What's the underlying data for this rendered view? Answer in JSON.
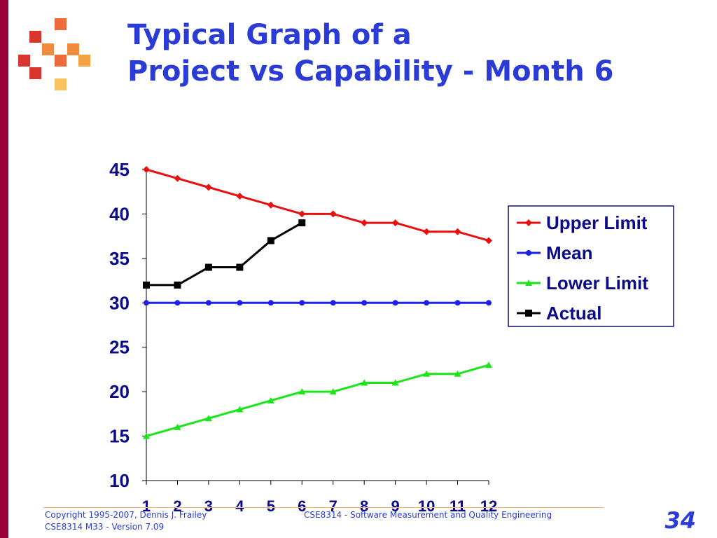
{
  "slide": {
    "title_line1": "Typical Graph of a",
    "title_line2": "Project vs Capability - Month 6",
    "footer_copyright": "Copyright 1995-2007, Dennis J. Frailey",
    "footer_version": "CSE8314 M33 - Version 7.09",
    "footer_course": "CSE8314 - Software Measurement and Quality Engineering",
    "page_number": "34",
    "accent_color": "#99003a",
    "title_color": "#2a3bd6"
  },
  "chart_data": {
    "type": "line",
    "title": "",
    "xlabel": "",
    "ylabel": "",
    "x": [
      1,
      2,
      3,
      4,
      5,
      6,
      7,
      8,
      9,
      10,
      11,
      12
    ],
    "ylim": [
      10,
      45
    ],
    "yticks": [
      10,
      15,
      20,
      25,
      30,
      35,
      40,
      45
    ],
    "grid": false,
    "legend_position": "right",
    "series": [
      {
        "name": "Upper Limit",
        "color": "#e81010",
        "marker": "diamond",
        "values": [
          45,
          44,
          43,
          42,
          41,
          40,
          40,
          39,
          39,
          38,
          38,
          37
        ]
      },
      {
        "name": "Mean",
        "color": "#1a22e6",
        "marker": "circle",
        "values": [
          30,
          30,
          30,
          30,
          30,
          30,
          30,
          30,
          30,
          30,
          30,
          30
        ]
      },
      {
        "name": "Lower Limit",
        "color": "#19e619",
        "marker": "triangle",
        "values": [
          15,
          16,
          17,
          18,
          19,
          20,
          20,
          21,
          21,
          22,
          22,
          23
        ]
      },
      {
        "name": "Actual",
        "color": "#000000",
        "marker": "square",
        "values": [
          32,
          32,
          34,
          34,
          37,
          39,
          null,
          null,
          null,
          null,
          null,
          null
        ]
      }
    ]
  }
}
